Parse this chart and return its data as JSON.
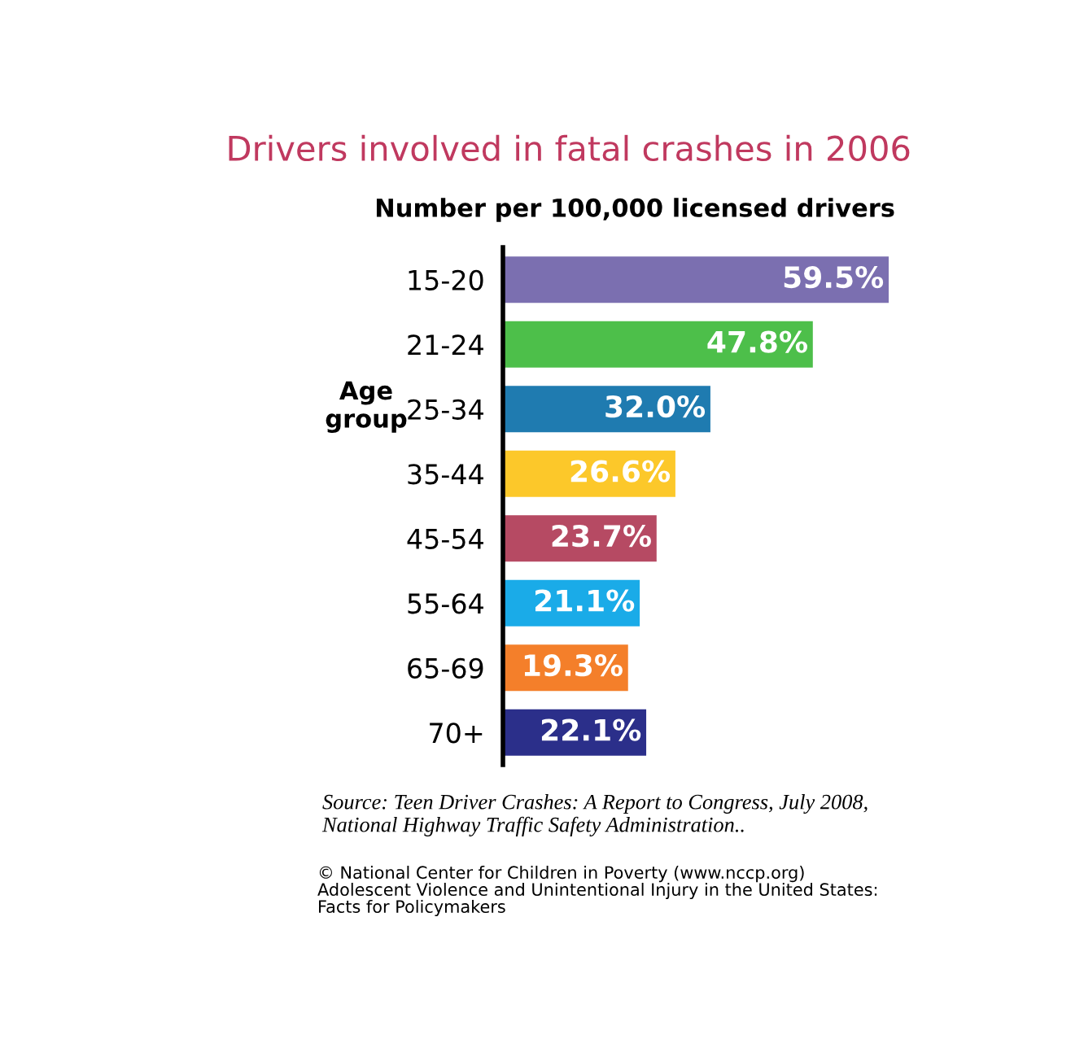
{
  "chart_data": {
    "type": "bar",
    "orientation": "horizontal",
    "title": "Drivers involved in fatal crashes in 2006",
    "xlabel": "Number per 100,000 licensed drivers",
    "ylabel": "Age\ngroup",
    "categories": [
      "15-20",
      "21-24",
      "25-34",
      "35-44",
      "45-54",
      "55-64",
      "65-69",
      "70+"
    ],
    "values": [
      59.5,
      47.8,
      32.0,
      26.6,
      23.7,
      21.1,
      19.3,
      22.1
    ],
    "value_labels": [
      "59.5%",
      "47.8%",
      "32.0%",
      "26.6%",
      "23.7%",
      "21.1%",
      "19.3%",
      "22.1%"
    ],
    "colors": [
      "#7b6fb0",
      "#4dbf4a",
      "#1f7bb0",
      "#fcc82a",
      "#b64a63",
      "#1aabe8",
      "#f47f2a",
      "#2b2f8a"
    ],
    "annotations": [
      "Source: Teen Driver Crashes: A Report to Congress, July 2008,\nNational Highway Traffic Safety Administration..",
      "© National Center for Children in Poverty (www.nccp.org)\nAdolescent Violence and Unintentional Injury in the United States:\nFacts for Policymakers"
    ]
  }
}
